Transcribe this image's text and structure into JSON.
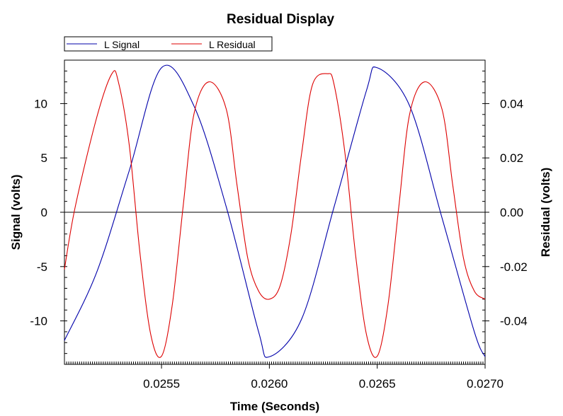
{
  "chart_data": {
    "type": "line",
    "title": "Residual Display",
    "xlabel": "Time (Seconds)",
    "ylabel_left": "Signal (volts)",
    "ylabel_right": "Residual (volts)",
    "xlim": [
      0.02505,
      0.027
    ],
    "ylim_left": [
      -14.0,
      14.0
    ],
    "ylim_right": [
      -0.056,
      0.056
    ],
    "x_ticks": [
      0.0255,
      0.026,
      0.0265,
      0.027
    ],
    "x_tick_labels": [
      "0.0255",
      "0.0260",
      "0.0265",
      "0.0270"
    ],
    "y_left_ticks": [
      10,
      5,
      0,
      -5,
      -10
    ],
    "y_left_tick_labels": [
      "10",
      "5",
      "0",
      "-5",
      "-10"
    ],
    "y_right_ticks": [
      0.04,
      0.02,
      0.0,
      -0.02,
      -0.04
    ],
    "y_right_tick_labels": [
      "0.04",
      "0.02",
      "0.00",
      "-0.02",
      "-0.04"
    ],
    "zero_line": true,
    "grid": false,
    "legend": {
      "placement": "top-left",
      "entries": [
        "L Signal",
        "L Residual"
      ]
    },
    "series": [
      {
        "name": "L Signal",
        "axis": "left",
        "color": "#0000aa",
        "x": [
          0.02505,
          0.0252,
          0.02535,
          0.0255,
          0.02565,
          0.0258,
          0.02595,
          0.026,
          0.02615,
          0.0263,
          0.02645,
          0.0265,
          0.02665,
          0.0268,
          0.02695,
          0.027
        ],
        "values": [
          -11.8,
          -5.5,
          3.8,
          13.3,
          9.8,
          0.5,
          -11.0,
          -13.3,
          -9.8,
          0.5,
          11.2,
          13.3,
          9.8,
          -0.5,
          -11.0,
          -13.3
        ]
      },
      {
        "name": "L Residual",
        "axis": "right",
        "color": "#dd0000",
        "x": [
          0.02505,
          0.0251,
          0.0252,
          0.02527,
          0.0253,
          0.02535,
          0.0254,
          0.02545,
          0.0255,
          0.02555,
          0.0256,
          0.02565,
          0.02572,
          0.0258,
          0.02585,
          0.0259,
          0.02595,
          0.026,
          0.02605,
          0.0261,
          0.02615,
          0.0262,
          0.02627,
          0.0263,
          0.02635,
          0.0264,
          0.02645,
          0.0265,
          0.02655,
          0.0266,
          0.02665,
          0.02672,
          0.0268,
          0.02685,
          0.0269,
          0.02695,
          0.027
        ],
        "values": [
          -0.021,
          0.002,
          0.035,
          0.051,
          0.048,
          0.025,
          -0.015,
          -0.045,
          -0.053,
          -0.034,
          0.002,
          0.036,
          0.048,
          0.038,
          0.01,
          -0.017,
          -0.029,
          -0.032,
          -0.027,
          -0.008,
          0.022,
          0.047,
          0.051,
          0.047,
          0.022,
          -0.016,
          -0.045,
          -0.053,
          -0.034,
          0.002,
          0.036,
          0.048,
          0.038,
          0.01,
          -0.017,
          -0.029,
          -0.032
        ]
      }
    ]
  }
}
